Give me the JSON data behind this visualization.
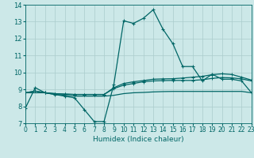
{
  "x": [
    0,
    1,
    2,
    3,
    4,
    5,
    6,
    7,
    8,
    9,
    10,
    11,
    12,
    13,
    14,
    15,
    16,
    17,
    18,
    19,
    20,
    21,
    22,
    23
  ],
  "line1": [
    7.9,
    9.1,
    8.8,
    8.7,
    8.6,
    8.5,
    7.8,
    7.1,
    7.1,
    9.3,
    13.05,
    12.9,
    13.2,
    13.7,
    12.55,
    11.7,
    10.35,
    10.35,
    9.5,
    9.9,
    9.6,
    9.6,
    9.5,
    8.8
  ],
  "line2": [
    8.8,
    8.8,
    8.8,
    8.7,
    8.65,
    8.6,
    8.6,
    8.6,
    8.6,
    8.65,
    8.75,
    8.8,
    8.82,
    8.85,
    8.87,
    8.88,
    8.88,
    8.88,
    8.88,
    8.88,
    8.88,
    8.88,
    8.88,
    8.8
  ],
  "line3": [
    8.8,
    8.9,
    8.8,
    8.75,
    8.72,
    8.7,
    8.7,
    8.7,
    8.7,
    9.05,
    9.25,
    9.35,
    9.45,
    9.5,
    9.52,
    9.53,
    9.53,
    9.53,
    9.57,
    9.65,
    9.7,
    9.68,
    9.62,
    9.5
  ],
  "line4": [
    8.8,
    8.9,
    8.8,
    8.75,
    8.72,
    8.7,
    8.7,
    8.7,
    8.7,
    9.1,
    9.35,
    9.45,
    9.52,
    9.6,
    9.62,
    9.63,
    9.67,
    9.72,
    9.77,
    9.87,
    9.92,
    9.88,
    9.72,
    9.55
  ],
  "bg_color": "#cce8e8",
  "grid_color": "#aacccc",
  "line_color": "#006666",
  "xlabel": "Humidex (Indice chaleur)",
  "ylim": [
    7,
    14
  ],
  "xlim": [
    0,
    23
  ],
  "yticks": [
    7,
    8,
    9,
    10,
    11,
    12,
    13,
    14
  ],
  "xticks": [
    0,
    1,
    2,
    3,
    4,
    5,
    6,
    7,
    8,
    9,
    10,
    11,
    12,
    13,
    14,
    15,
    16,
    17,
    18,
    19,
    20,
    21,
    22,
    23
  ],
  "xlabel_fontsize": 6.5,
  "tick_fontsize": 5.5
}
